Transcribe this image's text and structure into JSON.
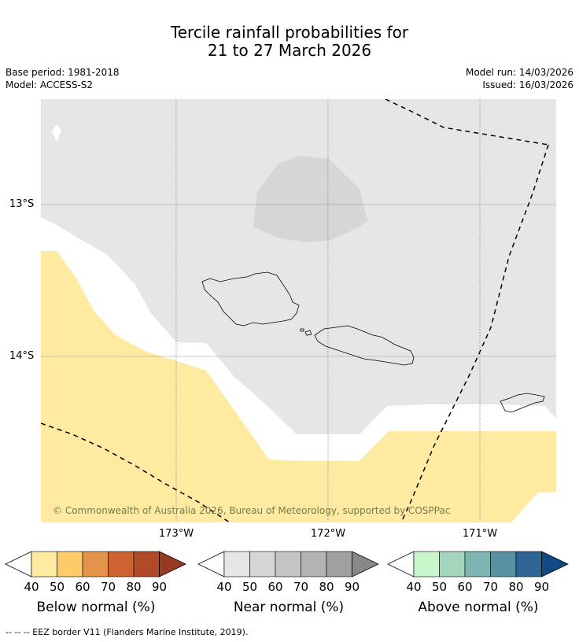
{
  "title_line1": "Tercile rainfall probabilities for",
  "title_line2": "21 to 27 March 2026",
  "base_period": "Base period: 1981-2018",
  "model": "Model: ACCESS-S2",
  "model_run": "Model run: 14/03/2026",
  "issued": "Issued: 16/03/2026",
  "lat_labels": [
    "13°S",
    "14°S"
  ],
  "lon_labels": [
    "173°W",
    "172°W",
    "171°W"
  ],
  "copyright": "© Commonwealth of Australia 2026, Bureau of Meteorology, supported by COSPPac",
  "colorbars": [
    {
      "title": "Below normal (%)",
      "ticks": [
        "40",
        "50",
        "60",
        "70",
        "80",
        "90"
      ],
      "colors": [
        "#ffffff",
        "#feeba1",
        "#fdcb6a",
        "#e3944a",
        "#cd6232",
        "#b04a27",
        "#983a21"
      ]
    },
    {
      "title": "Near normal (%)",
      "ticks": [
        "40",
        "50",
        "60",
        "70",
        "80",
        "90"
      ],
      "colors": [
        "#ffffff",
        "#e6e6e6",
        "#d6d6d6",
        "#c4c4c4",
        "#b3b3b3",
        "#a0a0a0",
        "#888888"
      ]
    },
    {
      "title": "Above normal (%)",
      "ticks": [
        "40",
        "50",
        "60",
        "70",
        "80",
        "90"
      ],
      "colors": [
        "#ffffff",
        "#c9f5cb",
        "#a2d6bd",
        "#7eb5b0",
        "#5892a0",
        "#2e6596",
        "#0f4a85"
      ]
    }
  ],
  "footnote": "-- -- -- EEZ border V11 (Flanders Marine Institute, 2019)."
}
